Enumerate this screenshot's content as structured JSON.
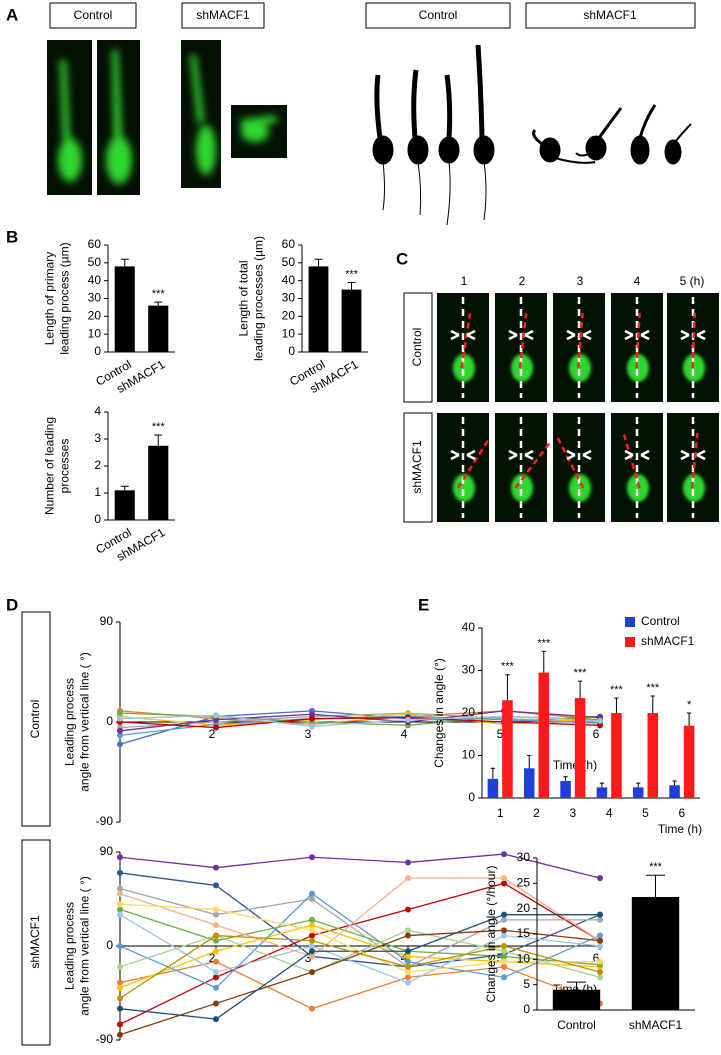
{
  "panel_labels": [
    "A",
    "B",
    "C",
    "D",
    "E"
  ],
  "panel_a": {
    "image_labels": [
      "Control",
      "shMACF1",
      "Control",
      "shMACF1"
    ]
  },
  "panel_c": {
    "columns": [
      "1",
      "2",
      "3",
      "4",
      "5 (h)"
    ],
    "rows": [
      "Control",
      "shMACF1"
    ]
  },
  "panel_d": {
    "rows": [
      "Control",
      "shMACF1"
    ]
  },
  "chart_data": [
    {
      "type": "bar",
      "y_label": [
        "Length of primary",
        "leading process (µm)"
      ],
      "categories": [
        "Control",
        "shMACF1"
      ],
      "values": [
        48,
        26
      ],
      "errors": [
        4,
        2
      ],
      "annotations": [
        null,
        "***"
      ],
      "color": "#000000",
      "ylim": [
        0,
        60
      ],
      "yticks": [
        0,
        10,
        20,
        30,
        40,
        50,
        60
      ]
    },
    {
      "type": "bar",
      "y_label": [
        "Length of total",
        "leading processes (µm)"
      ],
      "categories": [
        "Control",
        "shMACF1"
      ],
      "values": [
        48,
        35
      ],
      "errors": [
        4,
        4
      ],
      "annotations": [
        null,
        "***"
      ],
      "color": "#000000",
      "ylim": [
        0,
        60
      ],
      "yticks": [
        0,
        10,
        20,
        30,
        40,
        50,
        60
      ]
    },
    {
      "type": "bar",
      "y_label": [
        "Number of leading",
        "processes"
      ],
      "categories": [
        "Control",
        "shMACF1"
      ],
      "values": [
        1.1,
        2.75
      ],
      "errors": [
        0.15,
        0.4
      ],
      "annotations": [
        null,
        "***"
      ],
      "color": "#000000",
      "ylim": [
        0,
        4
      ],
      "yticks": [
        0,
        1,
        2,
        3,
        4
      ]
    },
    {
      "type": "line",
      "y_label": [
        "Leading process",
        "angle from vertical line ( °)"
      ],
      "x_label": "Time (h)",
      "x": [
        1,
        2,
        3,
        4,
        5,
        6
      ],
      "xlim": [
        1,
        6
      ],
      "xticks": [
        2,
        3,
        4,
        5,
        6
      ],
      "ylim": [
        -90,
        90
      ],
      "yticks": [
        -90,
        0,
        90
      ],
      "series": [
        {
          "color": "#4472c4",
          "values": [
            -20,
            5,
            10,
            3,
            0,
            5
          ]
        },
        {
          "color": "#ed7d31",
          "values": [
            10,
            3,
            -2,
            5,
            10,
            2
          ]
        },
        {
          "color": "#a5a5a5",
          "values": [
            -5,
            0,
            5,
            8,
            3,
            0
          ]
        },
        {
          "color": "#ffc000",
          "values": [
            5,
            -3,
            2,
            7,
            -2,
            3
          ]
        },
        {
          "color": "#5b9bd5",
          "values": [
            -12,
            -2,
            3,
            5,
            2,
            -1
          ]
        },
        {
          "color": "#70ad47",
          "values": [
            8,
            5,
            0,
            -3,
            5,
            2
          ]
        },
        {
          "color": "#7030a0",
          "values": [
            -8,
            2,
            7,
            0,
            10,
            4
          ]
        },
        {
          "color": "#c00000",
          "values": [
            0,
            -5,
            3,
            4,
            0,
            -3
          ]
        },
        {
          "color": "#9dc3e6",
          "values": [
            3,
            6,
            -4,
            2,
            5,
            1
          ]
        }
      ]
    },
    {
      "type": "line",
      "y_label": [
        "Leading process",
        "angle from vertical line ( °)"
      ],
      "x_label": "Time (h)",
      "x": [
        1,
        2,
        3,
        4,
        5,
        6
      ],
      "xlim": [
        1,
        6
      ],
      "xticks": [
        2,
        3,
        4,
        5,
        6
      ],
      "ylim": [
        -90,
        90
      ],
      "yticks": [
        -90,
        0,
        90
      ],
      "series": [
        {
          "color": "#7030a0",
          "values": [
            85,
            75,
            85,
            80,
            88,
            65
          ]
        },
        {
          "color": "#2f5597",
          "values": [
            70,
            58,
            -10,
            -20,
            -8,
            30
          ]
        },
        {
          "color": "#c00000",
          "values": [
            -75,
            -30,
            10,
            35,
            60,
            5
          ]
        },
        {
          "color": "#ed7d31",
          "values": [
            -35,
            -15,
            -60,
            -30,
            -20,
            -55
          ]
        },
        {
          "color": "#a5a5a5",
          "values": [
            55,
            30,
            45,
            -20,
            25,
            25
          ]
        },
        {
          "color": "#ffc000",
          "values": [
            -40,
            -5,
            20,
            -10,
            -15,
            -20
          ]
        },
        {
          "color": "#5b9bd5",
          "values": [
            0,
            -40,
            50,
            -15,
            -30,
            10
          ]
        },
        {
          "color": "#70ad47",
          "values": [
            35,
            5,
            25,
            -5,
            -10,
            -18
          ]
        },
        {
          "color": "#f4b183",
          "values": [
            50,
            20,
            -10,
            65,
            65,
            5
          ]
        },
        {
          "color": "#9dc3e6",
          "values": [
            30,
            -25,
            0,
            -35,
            10,
            0
          ]
        },
        {
          "color": "#a9d18e",
          "values": [
            -20,
            10,
            -25,
            15,
            -5,
            -30
          ]
        },
        {
          "color": "#843c0c",
          "values": [
            -85,
            -55,
            -25,
            10,
            15,
            5
          ]
        },
        {
          "color": "#1f4e79",
          "values": [
            -60,
            -70,
            -5,
            -5,
            30,
            30
          ]
        },
        {
          "color": "#ffd966",
          "values": [
            40,
            35,
            15,
            -25,
            -15,
            -15
          ]
        },
        {
          "color": "#bf9000",
          "values": [
            -50,
            10,
            5,
            -20,
            0,
            -25
          ]
        }
      ]
    },
    {
      "type": "bar",
      "y_label": [
        "Changes in angle (°)"
      ],
      "x_label": "Time (h)",
      "categories": [
        "1",
        "2",
        "3",
        "4",
        "5",
        "6"
      ],
      "ylim": [
        0,
        40
      ],
      "yticks": [
        0,
        10,
        20,
        30,
        40
      ],
      "legend": "top-right",
      "series": [
        {
          "name": "Control",
          "color": "#1f3fd6",
          "values": [
            4.5,
            7,
            4,
            2.5,
            2.5,
            3
          ],
          "errors": [
            2.5,
            3,
            1,
            1,
            1,
            1
          ]
        },
        {
          "name": "shMACF1",
          "color": "#ff1a1a",
          "values": [
            23,
            29.5,
            23.5,
            20,
            20,
            17
          ],
          "errors": [
            6,
            5,
            4,
            3.5,
            4,
            3
          ],
          "annotations": [
            "***",
            "***",
            "***",
            "***",
            "***",
            "*"
          ]
        }
      ]
    },
    {
      "type": "bar",
      "y_label": [
        "Changes in angle (°/hour)"
      ],
      "categories": [
        "Control",
        "shMACF1"
      ],
      "values": [
        4,
        22.3
      ],
      "errors": [
        1.5,
        4.3
      ],
      "annotations": [
        null,
        "***"
      ],
      "color": "#000000",
      "ylim": [
        0,
        30
      ],
      "yticks": [
        0,
        5,
        10,
        15,
        20,
        25,
        30
      ]
    }
  ]
}
